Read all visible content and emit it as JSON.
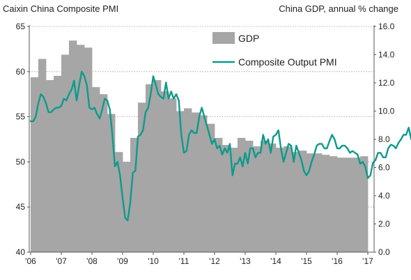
{
  "chart_data": {
    "type": "bar+line",
    "title_left": "Caixin China Composite PMI",
    "title_right": "China GDP, annual % change",
    "x_tick_labels": [
      "'06",
      "'07",
      "'08",
      "'09",
      "'10",
      "'11",
      "'12",
      "'13",
      "'14",
      "'15",
      "'16",
      "'17"
    ],
    "y_left": {
      "ylim": [
        40,
        65
      ],
      "ticks": [
        "40",
        "45",
        "50",
        "55",
        "60",
        "65"
      ]
    },
    "y_right": {
      "ylim": [
        0,
        16
      ],
      "ticks": [
        "0.0",
        "2.0",
        "4.0",
        "6.0",
        "8.0",
        "10.0",
        "12.0",
        "14.0",
        "16.0"
      ]
    },
    "grid": "horizontal dotted at left-axis ticks",
    "legend_position": "top-center",
    "series": [
      {
        "name": "GDP",
        "kind": "bar",
        "axis": "right",
        "color": "#a6a6a6",
        "x_quarters": [
          "2006Q1",
          "2006Q2",
          "2006Q3",
          "2006Q4",
          "2007Q1",
          "2007Q2",
          "2007Q3",
          "2007Q4",
          "2008Q1",
          "2008Q2",
          "2008Q3",
          "2008Q4",
          "2009Q1",
          "2009Q2",
          "2009Q3",
          "2009Q4",
          "2010Q1",
          "2010Q2",
          "2010Q3",
          "2010Q4",
          "2011Q1",
          "2011Q2",
          "2011Q3",
          "2011Q4",
          "2012Q1",
          "2012Q2",
          "2012Q3",
          "2012Q4",
          "2013Q1",
          "2013Q2",
          "2013Q3",
          "2013Q4",
          "2014Q1",
          "2014Q2",
          "2014Q3",
          "2014Q4",
          "2015Q1",
          "2015Q2",
          "2015Q3",
          "2015Q4",
          "2016Q1",
          "2016Q2",
          "2016Q3",
          "2016Q4"
        ],
        "values": [
          12.4,
          13.7,
          12.2,
          12.5,
          14.0,
          15.0,
          14.7,
          14.5,
          11.7,
          11.2,
          9.8,
          7.1,
          6.4,
          8.1,
          10.6,
          11.9,
          12.2,
          11.4,
          10.9,
          10.0,
          10.2,
          9.9,
          9.7,
          9.1,
          8.1,
          7.6,
          7.4,
          8.1,
          7.9,
          7.5,
          7.9,
          7.7,
          7.4,
          7.5,
          7.1,
          7.2,
          7.0,
          7.0,
          6.9,
          6.8,
          6.7,
          6.7,
          6.7,
          6.8
        ]
      },
      {
        "name": "Composite Output PMI",
        "kind": "line",
        "axis": "left",
        "color": "#0e9a8c",
        "x_start_month": "2006-01",
        "values": [
          54.5,
          54.5,
          55.0,
          56.5,
          57.5,
          57.2,
          56.5,
          55.5,
          55.5,
          55.8,
          56.0,
          56.0,
          56.2,
          57.0,
          56.8,
          57.5,
          58.0,
          59.0,
          56.8,
          58.5,
          60.0,
          59.5,
          58.5,
          56.0,
          55.8,
          56.0,
          55.3,
          54.8,
          55.8,
          57.0,
          56.8,
          55.8,
          53.0,
          49.5,
          50.0,
          48.5,
          46.0,
          43.8,
          43.5,
          45.5,
          48.8,
          49.0,
          52.8,
          53.0,
          53.5,
          55.5,
          56.0,
          57.5,
          59.5,
          58.5,
          57.5,
          57.2,
          57.0,
          58.8,
          57.0,
          57.8,
          57.0,
          57.5,
          56.8,
          53.0,
          51.0,
          51.2,
          53.0,
          53.5,
          53.2,
          53.2,
          55.0,
          56.0,
          55.0,
          54.0,
          53.0,
          52.0,
          52.5,
          51.5,
          51.8,
          50.8,
          51.5,
          51.0,
          52.0,
          48.5,
          49.8,
          49.8,
          50.5,
          49.5,
          51.0,
          49.8,
          51.5,
          51.5,
          50.5,
          51.0,
          51.0,
          53.0,
          52.0,
          52.5,
          51.0,
          52.8,
          53.0,
          53.5,
          51.5,
          50.0,
          51.0,
          52.0,
          51.8,
          50.0,
          51.8,
          51.0,
          50.2,
          49.0,
          48.5,
          49.0,
          50.0,
          50.8,
          51.8,
          52.0,
          52.0,
          51.5,
          51.5,
          52.3,
          53.0,
          52.5,
          51.5,
          51.5,
          51.8,
          51.8,
          51.5,
          51.0,
          51.2,
          51.0,
          50.8,
          49.8,
          50.0,
          49.5,
          48.2,
          48.5,
          49.9,
          50.2,
          51.0,
          51.0,
          50.5,
          50.5,
          51.5,
          51.9,
          51.8,
          51.5,
          52.1,
          52.5,
          53.0,
          53.0,
          53.8,
          52.5,
          52.4
        ]
      }
    ]
  }
}
